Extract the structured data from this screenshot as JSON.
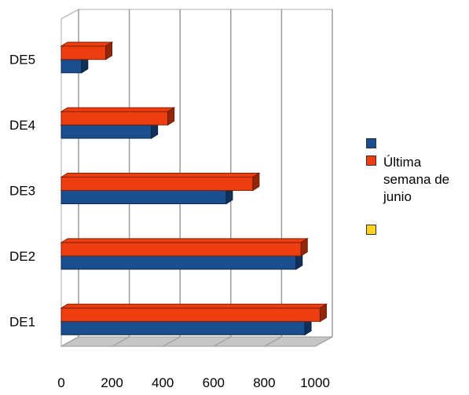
{
  "chart_data": {
    "type": "bar",
    "orientation": "horizontal",
    "three_d": true,
    "categories": [
      "DE1",
      "DE2",
      "DE3",
      "DE4",
      "DE5"
    ],
    "series": [
      {
        "name": "",
        "color": "#1a4e8f",
        "values": [
          960,
          925,
          650,
          355,
          80
        ]
      },
      {
        "name": "Última semana de junio",
        "color": "#ee3e0f",
        "values": [
          1020,
          945,
          755,
          420,
          175
        ]
      },
      {
        "name": "",
        "color": "#ffd21f",
        "values": [
          0,
          0,
          0,
          0,
          0
        ]
      }
    ],
    "xlim": [
      0,
      1000
    ],
    "xticks": [
      0,
      200,
      400,
      600,
      800,
      1000
    ],
    "grid": true,
    "legend_position": "right",
    "title": "",
    "xlabel": "",
    "ylabel": ""
  },
  "legend": {
    "entries": [
      {
        "label": "",
        "color": "#1a4e8f"
      },
      {
        "label": "Última semana de junio",
        "color": "#ee3e0f"
      },
      {
        "label": "",
        "color": "#ffd21f"
      }
    ]
  }
}
